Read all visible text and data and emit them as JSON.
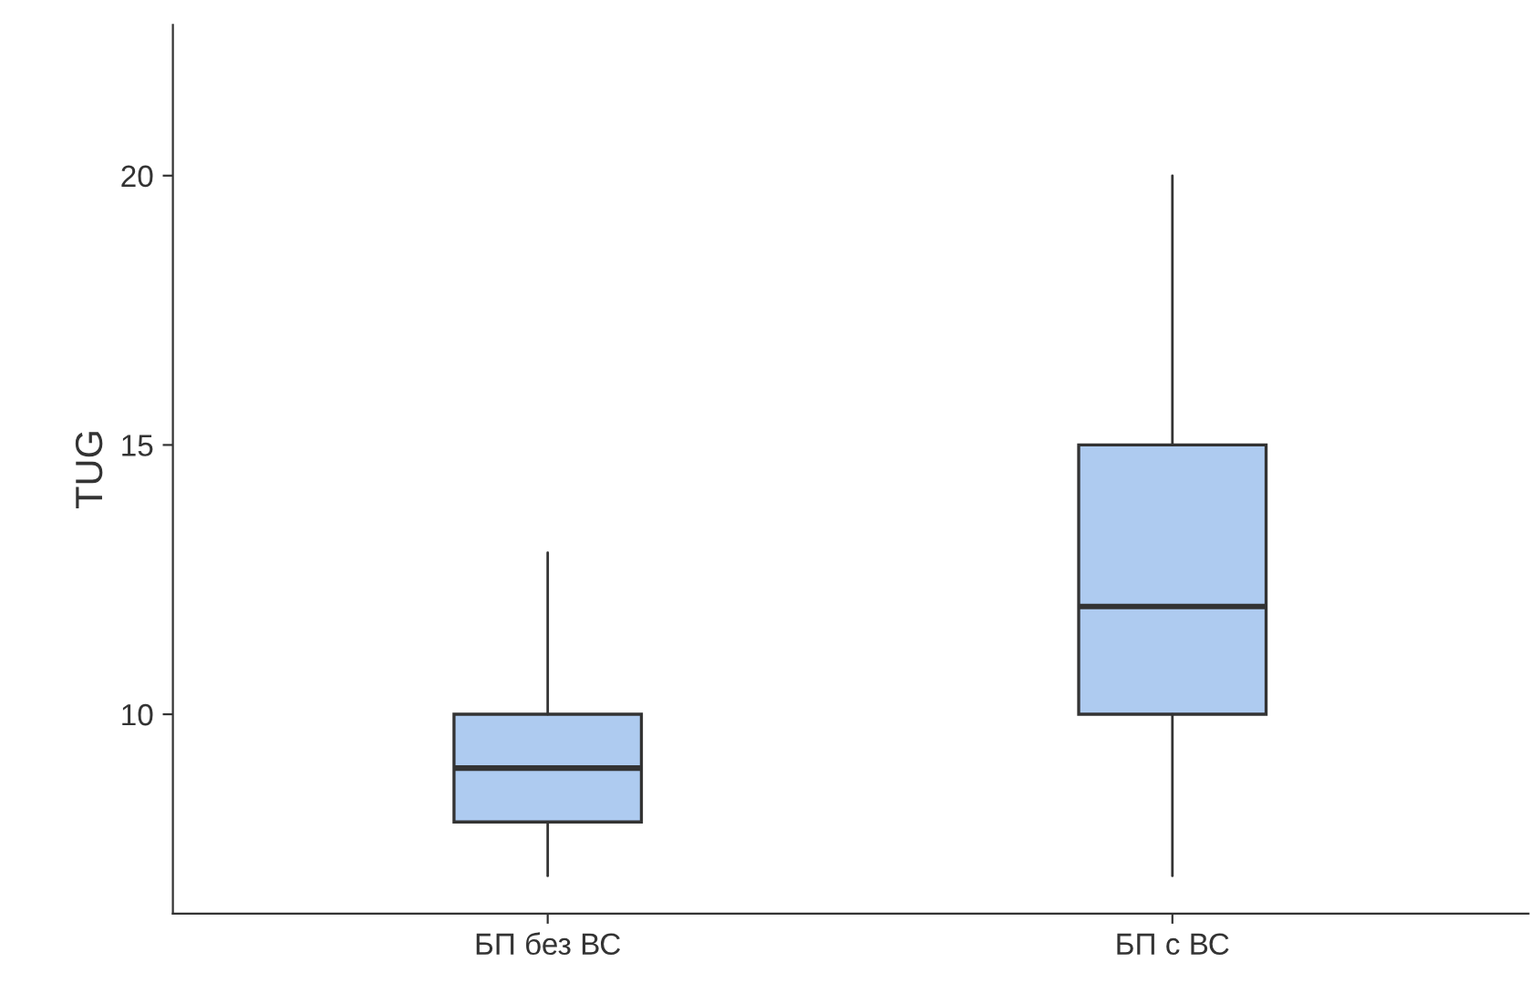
{
  "chart_data": {
    "type": "box",
    "ylabel": "TUG",
    "categories": [
      "БП без ВС",
      "БП с ВС"
    ],
    "boxes": [
      {
        "low": 7,
        "q1": 8,
        "median": 9,
        "q3": 10,
        "high": 13
      },
      {
        "low": 7,
        "q1": 10,
        "median": 12,
        "q3": 15,
        "high": 20
      }
    ],
    "color": "#aecbf0",
    "ylim": [
      6.3,
      22.8
    ],
    "yticks": [
      10,
      15,
      20
    ],
    "grid": false
  }
}
